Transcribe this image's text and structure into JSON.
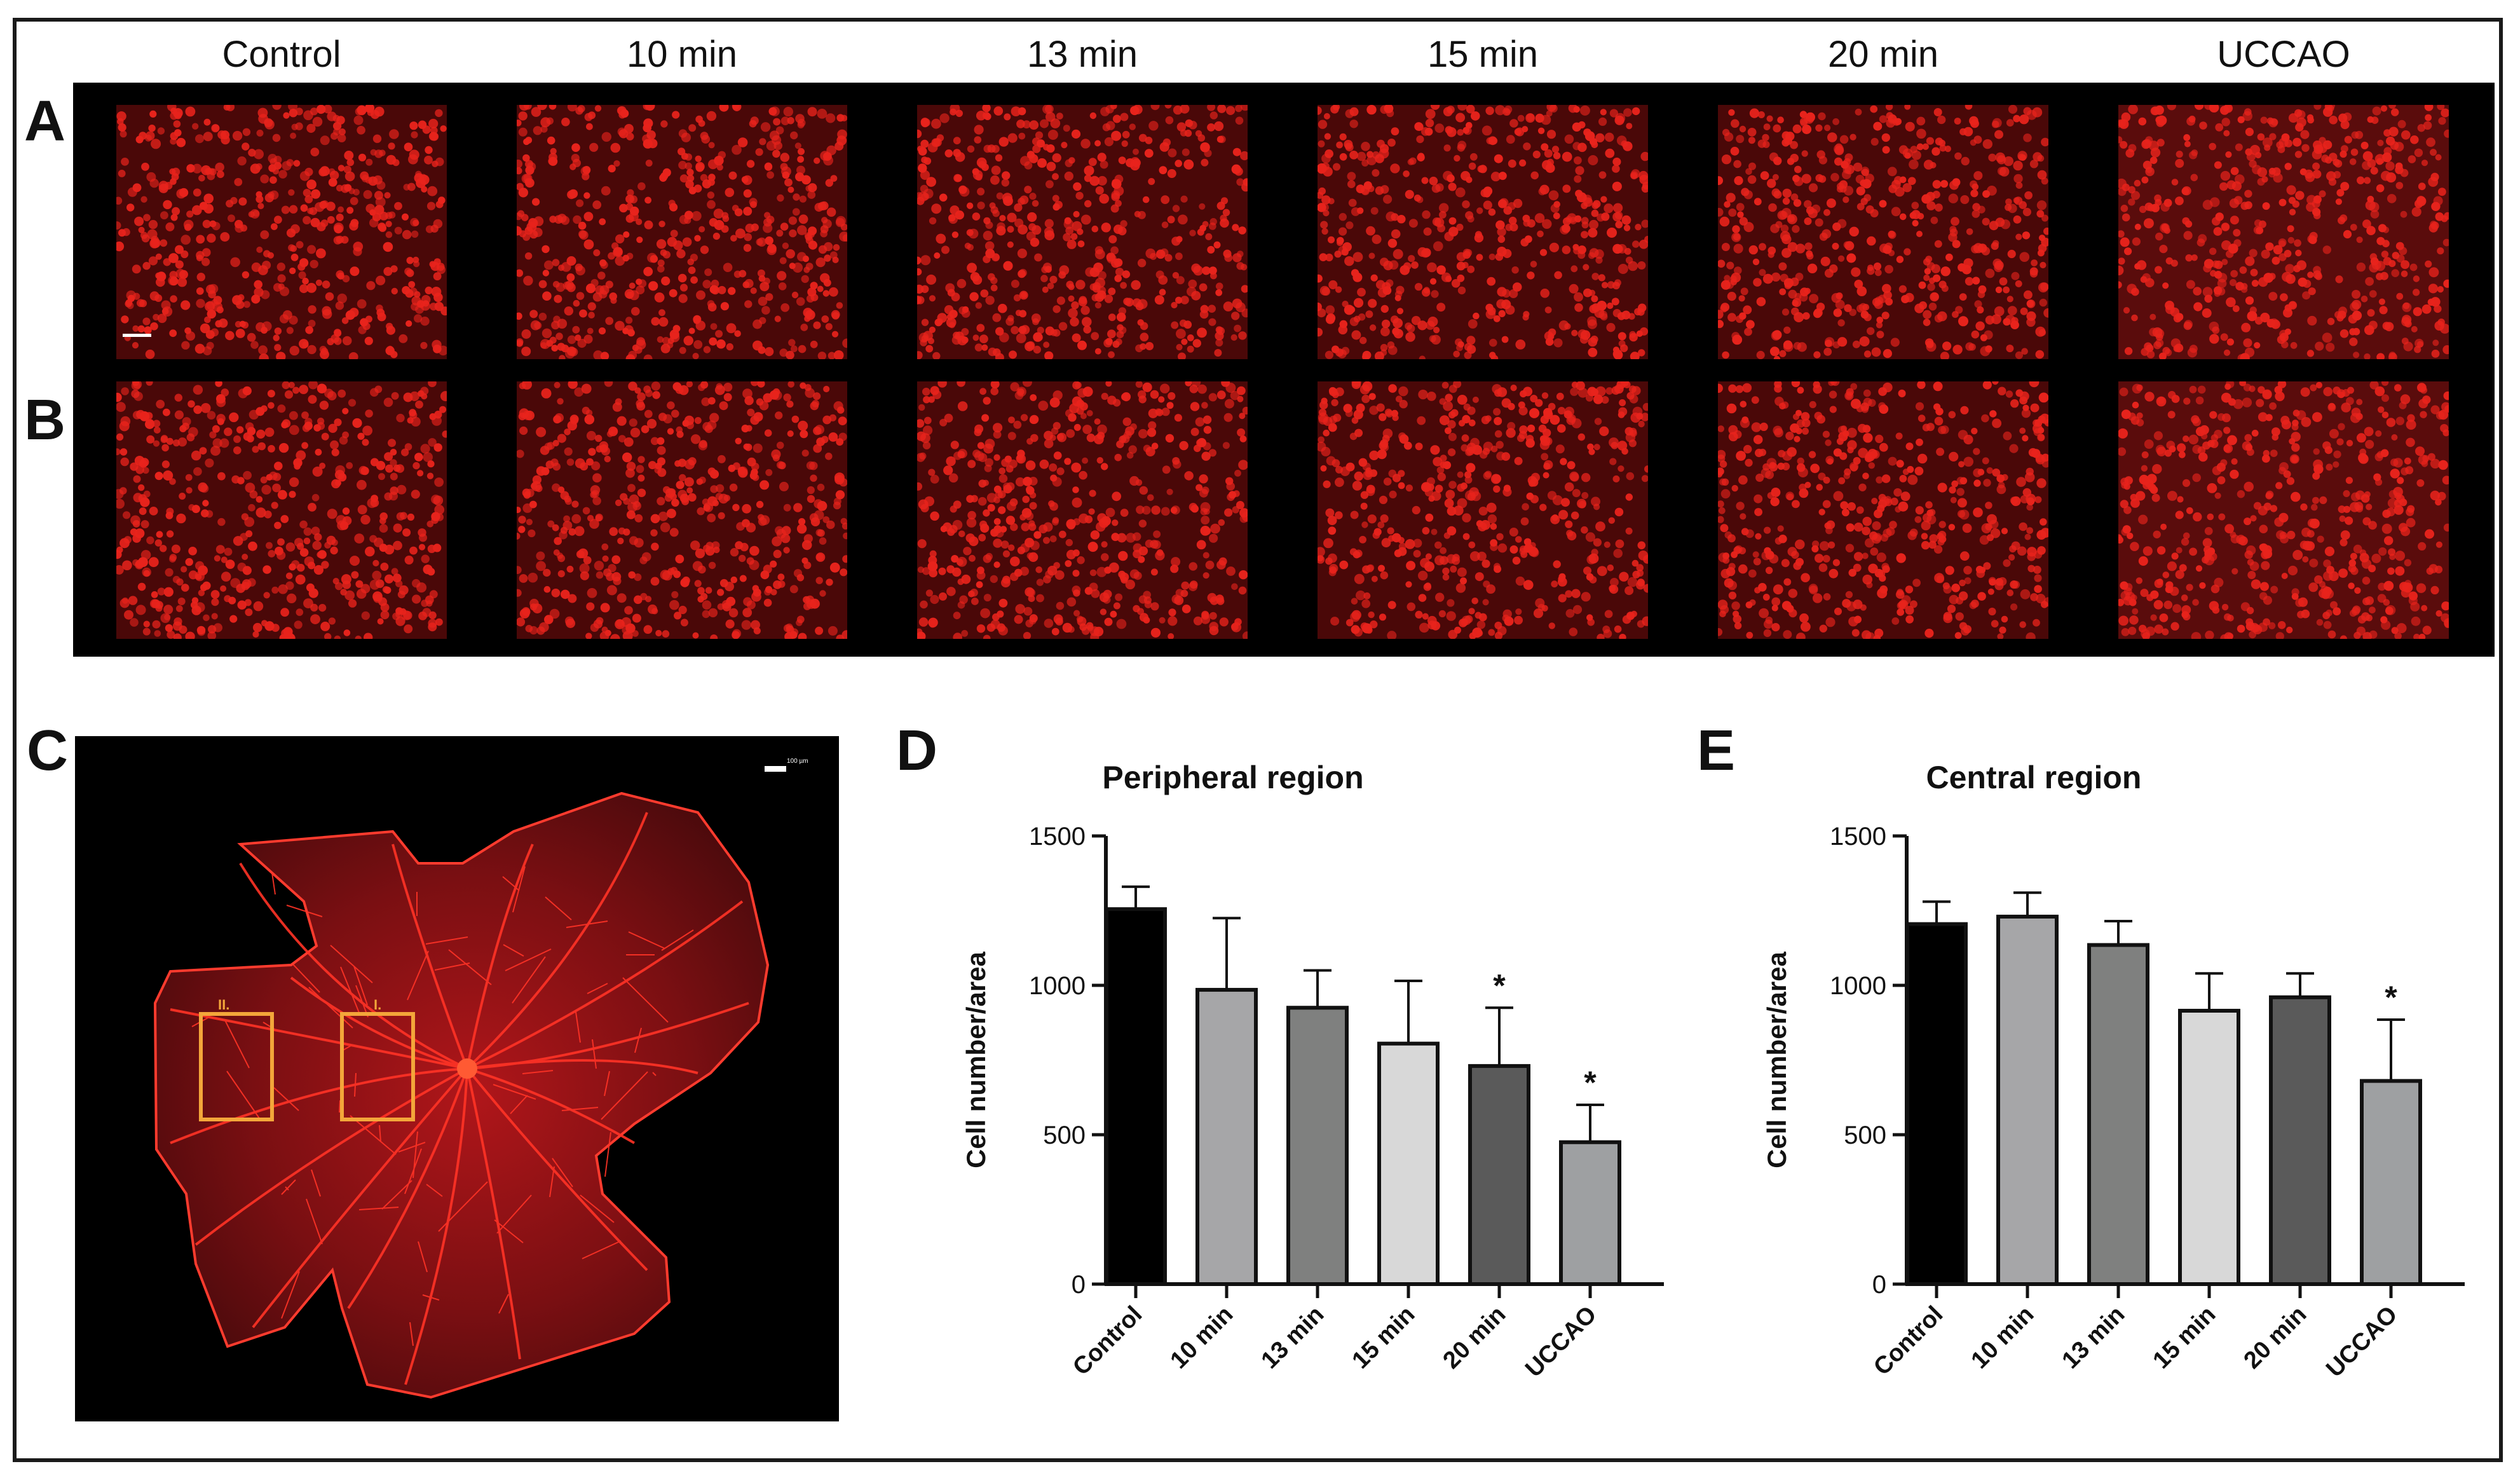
{
  "panels": {
    "a": "A",
    "b": "B",
    "c": "C",
    "d": "D",
    "e": "E"
  },
  "columns": [
    "Control",
    "10 min",
    "13 min",
    "15 min",
    "20 min",
    "UCCAO"
  ],
  "retina": {
    "scale_label": "100 µm",
    "box_1": "I.",
    "box_2": "II.",
    "box_color": "#f3a63a"
  },
  "colors": {
    "fluorescence": "#e8231c",
    "bar_fills": [
      "#000000",
      "#a6a6a8",
      "#7f807f",
      "#d8d8d8",
      "#5a5a5a",
      "#9ea0a2"
    ]
  },
  "chart_data": [
    {
      "type": "bar",
      "title": "Peripheral region",
      "xlabel": "",
      "ylabel": "Cell number/area",
      "categories": [
        "Control",
        "10 min",
        "13 min",
        "15 min",
        "20 min",
        "UCCAO"
      ],
      "values": [
        1255,
        985,
        925,
        805,
        730,
        475
      ],
      "errors": [
        75,
        240,
        125,
        210,
        195,
        125
      ],
      "significance": [
        "",
        "",
        "",
        "",
        "*",
        "*"
      ],
      "ylim": [
        0,
        1500
      ],
      "yticks": [
        0,
        500,
        1000,
        1500
      ],
      "grid": false,
      "legend": "none"
    },
    {
      "type": "bar",
      "title": "Central region",
      "xlabel": "",
      "ylabel": "Cell number/area",
      "categories": [
        "Control",
        "10 min",
        "13 min",
        "15 min",
        "20 min",
        "UCCAO"
      ],
      "values": [
        1205,
        1230,
        1135,
        915,
        960,
        680
      ],
      "errors": [
        75,
        80,
        80,
        125,
        80,
        205
      ],
      "significance": [
        "",
        "",
        "",
        "",
        "",
        "*"
      ],
      "ylim": [
        0,
        1500
      ],
      "yticks": [
        0,
        500,
        1000,
        1500
      ],
      "grid": false,
      "legend": "none"
    }
  ]
}
